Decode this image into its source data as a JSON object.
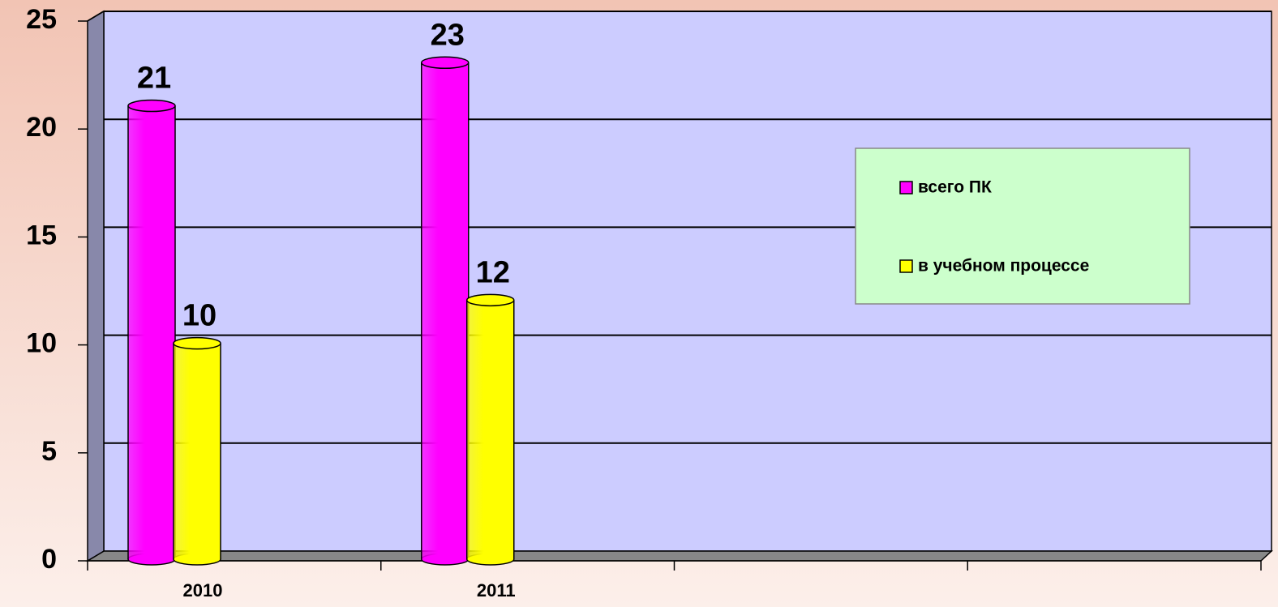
{
  "chart_data": {
    "type": "bar3d",
    "categories": [
      "2010",
      "2011",
      null,
      null
    ],
    "series": [
      {
        "name": "всего ПК",
        "color": "#ff00ff",
        "values": [
          21,
          23,
          null,
          null
        ]
      },
      {
        "name": "в учебном процессе",
        "color": "#ffff00",
        "values": [
          10,
          12,
          null,
          null
        ]
      }
    ],
    "ylim": [
      0,
      25
    ],
    "yticks": [
      0,
      5,
      10,
      15,
      20,
      25
    ],
    "grid": true,
    "legend": "right"
  }
}
